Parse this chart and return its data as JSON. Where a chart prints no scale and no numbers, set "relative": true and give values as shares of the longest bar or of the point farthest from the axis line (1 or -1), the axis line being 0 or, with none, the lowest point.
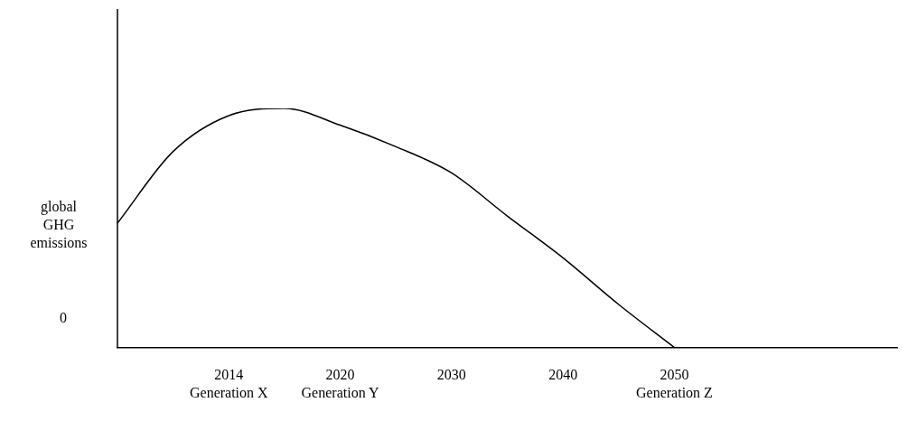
{
  "chart_data": {
    "type": "line",
    "ylabel": "global\nGHG\nemissions",
    "annotations": [
      "0"
    ],
    "relative": true,
    "marker": "none",
    "color": "#000000",
    "categories": [
      null,
      null,
      "2014\nGeneration X",
      null,
      "2020\nGeneration Y",
      null,
      "2030",
      null,
      "2040",
      null,
      "2050\nGeneration Z",
      null,
      null,
      null,
      null
    ],
    "values": [
      0.52,
      0.82,
      0.97,
      1.0,
      0.93,
      0.84,
      0.73,
      0.55,
      0.375,
      0.18,
      0,
      null,
      null,
      null,
      null
    ]
  }
}
